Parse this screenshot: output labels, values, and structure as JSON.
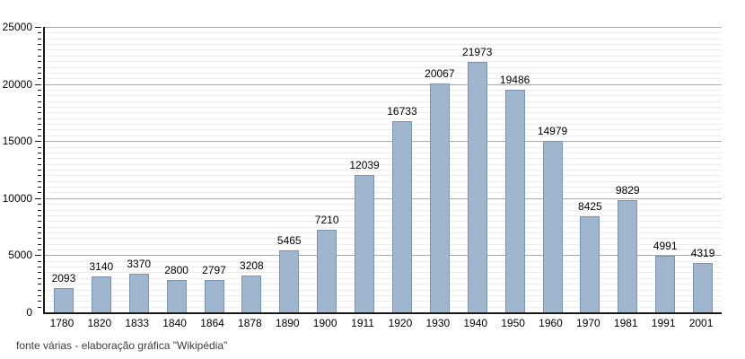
{
  "chart_data": {
    "type": "bar",
    "categories": [
      "1780",
      "1820",
      "1833",
      "1840",
      "1864",
      "1878",
      "1890",
      "1900",
      "1911",
      "1920",
      "1930",
      "1940",
      "1950",
      "1960",
      "1970",
      "1981",
      "1991",
      "2001"
    ],
    "values": [
      2093,
      3140,
      3370,
      2800,
      2797,
      3208,
      5465,
      7210,
      12039,
      16733,
      20067,
      21973,
      19486,
      14979,
      8425,
      9829,
      4991,
      4319
    ],
    "title": "",
    "xlabel": "",
    "ylabel": "",
    "ylim": [
      0,
      25000
    ],
    "ytick_major": 5000,
    "ytick_minor": 500,
    "grid": true,
    "legend": "none",
    "value_labels": true,
    "colors": {
      "bar_fill": "#9fb6ce",
      "bar_border": "#7a94ae",
      "grid_major": "#a9a9a9",
      "grid_minor": "#ececec",
      "axis": "#1a1a1a",
      "text": "#000000"
    }
  },
  "footer": {
    "source_text": "fonte várias - elaboração gráfica \"Wikipédia\""
  }
}
